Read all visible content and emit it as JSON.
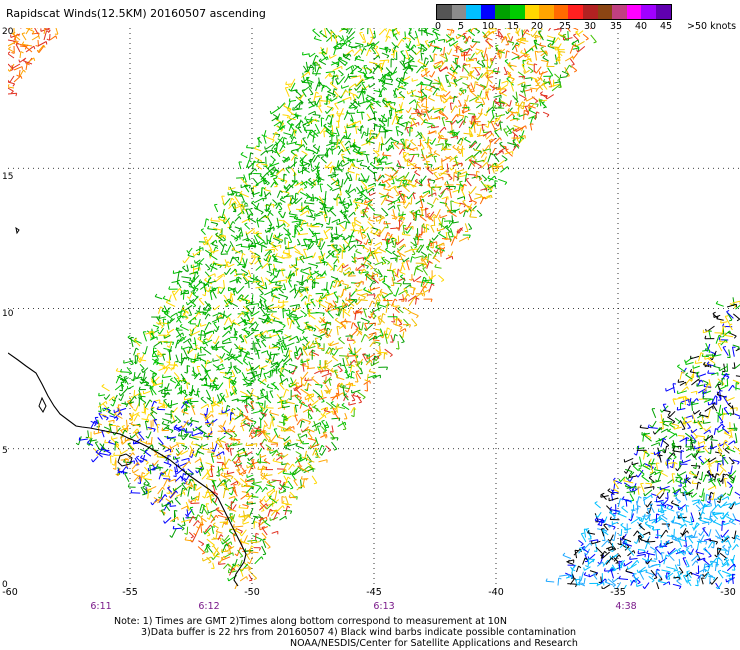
{
  "title": "Rapidscat Winds(12.5KM) 20160507 ascending",
  "legend": {
    "colors": [
      "#555555",
      "#8c8c8c",
      "#00bfff",
      "#0000ff",
      "#00a000",
      "#00cc00",
      "#ffd700",
      "#ffa500",
      "#ff6a00",
      "#ff2020",
      "#b22222",
      "#8b4513",
      "#c04080",
      "#ff00ff",
      "#a000ff",
      "#6000b0"
    ],
    "labels": [
      "0",
      "5",
      "10",
      "15",
      "20",
      "25",
      "30",
      "35",
      "40",
      "45"
    ],
    "units": ">50 knots"
  },
  "axes": {
    "x_labels": [
      "-60",
      "-55",
      "-50",
      "-45",
      "-40",
      "-35",
      "-30"
    ],
    "y_labels": [
      "0",
      "5",
      "10",
      "15",
      "20"
    ],
    "grid": "dotted"
  },
  "times": [
    "6:11",
    "6:12",
    "6:13",
    "4:38"
  ],
  "notes": [
    "Note: 1) Times are GMT 2)Times along bottom correspond to measurement at 10N",
    "3)Data buffer is 22 hrs from 20160507 4) Black wind barbs indicate possible contamination",
    "NOAA/NESDIS/Center for Satellite Applications and Research"
  ]
}
